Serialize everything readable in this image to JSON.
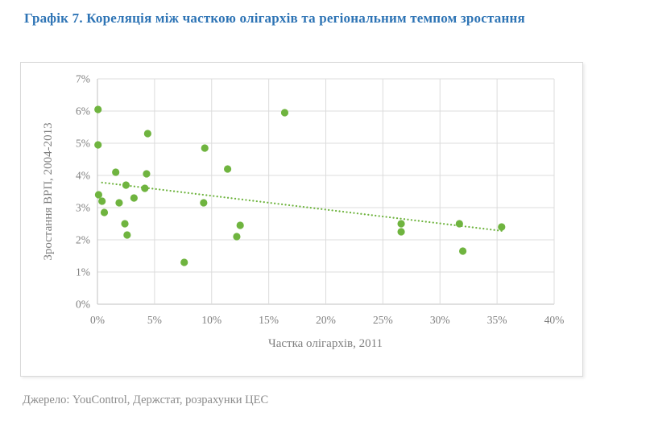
{
  "page": {
    "title": "Графік 7. Кореляція між часткою олігархів та регіональним темпом зростання",
    "source": "Джерело: YouControl, Держстат, розрахунки ЦЕС"
  },
  "colors": {
    "accent_green": "#6FB43F",
    "title_blue": "#2E74B5",
    "gridline": "#DCDCDC",
    "axis_line": "#C0C0C0",
    "label_gray": "#7F7F7F",
    "source_gray": "#8A8A8A"
  },
  "chart_data": {
    "type": "scatter",
    "title": "",
    "xlabel": "Частка олігархів, 2011",
    "ylabel": "Зростання ВРП, 2004-2013",
    "xlim": [
      0,
      40
    ],
    "ylim": [
      0,
      7
    ],
    "x_ticks": [
      "0%",
      "5%",
      "10%",
      "15%",
      "20%",
      "25%",
      "30%",
      "35%",
      "40%"
    ],
    "y_ticks": [
      "0%",
      "1%",
      "2%",
      "3%",
      "4%",
      "5%",
      "6%",
      "7%"
    ],
    "grid": true,
    "legend": false,
    "units": "percent",
    "series": [
      {
        "name": "regions",
        "points": [
          [
            0.05,
            6.05
          ],
          [
            0.05,
            4.95
          ],
          [
            4.4,
            5.3
          ],
          [
            1.6,
            4.1
          ],
          [
            4.3,
            4.05
          ],
          [
            2.5,
            3.7
          ],
          [
            4.15,
            3.6
          ],
          [
            0.1,
            3.4
          ],
          [
            0.4,
            3.2
          ],
          [
            1.9,
            3.15
          ],
          [
            3.2,
            3.3
          ],
          [
            0.6,
            2.85
          ],
          [
            2.4,
            2.5
          ],
          [
            2.6,
            2.15
          ],
          [
            9.4,
            4.85
          ],
          [
            11.4,
            4.2
          ],
          [
            16.4,
            5.95
          ],
          [
            9.3,
            3.15
          ],
          [
            12.5,
            2.45
          ],
          [
            12.2,
            2.1
          ],
          [
            7.6,
            1.3
          ],
          [
            26.6,
            2.5
          ],
          [
            26.6,
            2.25
          ],
          [
            31.7,
            2.5
          ],
          [
            32.0,
            1.65
          ],
          [
            35.4,
            2.4
          ]
        ]
      }
    ],
    "trendline": {
      "style": "dotted",
      "x": [
        0.4,
        35.6
      ],
      "y": [
        3.78,
        2.27
      ]
    }
  }
}
